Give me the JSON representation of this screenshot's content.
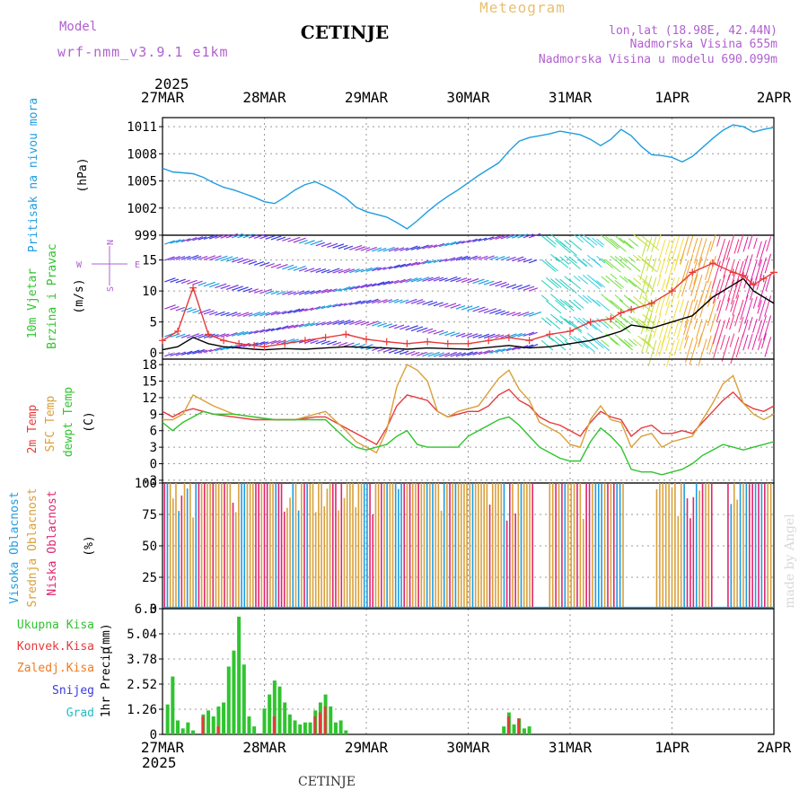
{
  "header": {
    "model_label": "Model",
    "model_name": "wrf-nmm_v3.9.1 e1km",
    "station": "CETINJE",
    "product": "Meteogram",
    "lonlat": "lon,lat (18.98E, 42.44N)",
    "elevation": "Nadmorska Visina 655m",
    "model_elevation": "Nadmorska Visina u modelu 690.099m",
    "year": "2025",
    "footer_station": "CETINJE",
    "watermark": "made by Angel"
  },
  "colors": {
    "pressure": "#1e9de0",
    "wind_speed": "#000000",
    "wind_gust": "#e8393a",
    "temp_2m": "#e8393a",
    "temp_sfc": "#d9a03a",
    "dewpoint": "#2fc42f",
    "cloud_high": "#1e9de0",
    "cloud_mid": "#d9a03a",
    "cloud_low": "#e0266f",
    "precip_total": "#2fc42f",
    "precip_conv": "#e8393a",
    "precip_strat": "#f07a20",
    "snow": "#3a3ae0",
    "hail": "#20c0c0",
    "label_purple": "#b060d0",
    "label_orange": "#e8c070"
  },
  "chart_data": {
    "type": "line",
    "x_ticks": [
      "27MAR",
      "28MAR",
      "29MAR",
      "30MAR",
      "31MAR",
      "1APR",
      "2APR"
    ],
    "x_range_days": [
      0,
      6
    ],
    "panels": [
      {
        "id": "pressure",
        "ylabel": "Pritisak na nivou mora",
        "unit": "(hPa)",
        "yticks": [
          999,
          1002,
          1005,
          1008,
          1011
        ],
        "ylim": [
          999,
          1012
        ],
        "series": [
          {
            "name": "pressure",
            "x": [
              0,
              0.1,
              0.2,
              0.3,
              0.4,
              0.5,
              0.6,
              0.7,
              0.8,
              0.9,
              1.0,
              1.1,
              1.2,
              1.3,
              1.4,
              1.5,
              1.6,
              1.7,
              1.8,
              1.9,
              2.0,
              2.1,
              2.2,
              2.3,
              2.4,
              2.5,
              2.6,
              2.7,
              2.8,
              2.9,
              3.0,
              3.1,
              3.2,
              3.3,
              3.4,
              3.5,
              3.6,
              3.7,
              3.8,
              3.9,
              4.0,
              4.1,
              4.2,
              4.3,
              4.4,
              4.5,
              4.6,
              4.7,
              4.8,
              4.9,
              5.0,
              5.1,
              5.2,
              5.3,
              5.4,
              5.5,
              5.6,
              5.7,
              5.8,
              5.9,
              6.0
            ],
            "values": [
              1006.4,
              1006.0,
              1005.9,
              1005.8,
              1005.4,
              1004.8,
              1004.3,
              1004.0,
              1003.6,
              1003.2,
              1002.7,
              1002.5,
              1003.2,
              1004.0,
              1004.6,
              1004.9,
              1004.4,
              1003.8,
              1003.1,
              1002.1,
              1001.6,
              1001.3,
              1001.0,
              1000.4,
              999.7,
              1000.6,
              1001.6,
              1002.5,
              1003.3,
              1004.0,
              1004.8,
              1005.6,
              1006.3,
              1007.0,
              1008.3,
              1009.4,
              1009.8,
              1010.0,
              1010.2,
              1010.5,
              1010.3,
              1010.1,
              1009.6,
              1008.9,
              1009.6,
              1010.7,
              1010.0,
              1008.8,
              1007.9,
              1007.8,
              1007.6,
              1007.1,
              1007.7,
              1008.7,
              1009.7,
              1010.6,
              1011.2,
              1011.0,
              1010.4,
              1010.7,
              1010.9
            ]
          }
        ]
      },
      {
        "id": "wind",
        "ylabel": "10m Vjetar Brzina i Pravac",
        "unit": "(m/s)",
        "yticks": [
          0,
          5,
          10,
          15
        ],
        "ylim": [
          -1,
          19
        ],
        "series": [
          {
            "name": "wind_speed",
            "x": [
              0,
              0.15,
              0.3,
              0.45,
              0.6,
              0.75,
              0.9,
              1.0,
              1.2,
              1.4,
              1.6,
              1.8,
              2.0,
              2.2,
              2.4,
              2.6,
              2.8,
              3.0,
              3.2,
              3.4,
              3.6,
              3.8,
              4.0,
              4.2,
              4.4,
              4.5,
              4.6,
              4.8,
              5.0,
              5.2,
              5.4,
              5.6,
              5.7,
              5.8,
              5.9,
              6.0
            ],
            "values": [
              0.5,
              1.0,
              2.5,
              1.5,
              1.0,
              0.8,
              0.6,
              0.5,
              0.7,
              0.6,
              0.8,
              1.0,
              0.9,
              0.8,
              0.6,
              0.8,
              0.7,
              0.6,
              0.9,
              1.2,
              0.8,
              1.0,
              1.5,
              2.0,
              3.0,
              3.5,
              4.5,
              4.0,
              5.0,
              6.0,
              9.0,
              11.0,
              12.0,
              10.0,
              9.0,
              8.0
            ]
          },
          {
            "name": "wind_gust",
            "x": [
              0,
              0.15,
              0.3,
              0.45,
              0.6,
              0.75,
              0.9,
              1.0,
              1.2,
              1.4,
              1.6,
              1.8,
              2.0,
              2.2,
              2.4,
              2.6,
              2.8,
              3.0,
              3.2,
              3.4,
              3.6,
              3.8,
              4.0,
              4.2,
              4.4,
              4.5,
              4.6,
              4.8,
              5.0,
              5.2,
              5.4,
              5.6,
              5.7,
              5.8,
              5.9,
              6.0
            ],
            "values": [
              2.0,
              3.5,
              10.5,
              3.0,
              2.0,
              1.5,
              1.2,
              1.0,
              1.5,
              2.0,
              2.5,
              3.0,
              2.2,
              1.8,
              1.5,
              1.8,
              1.5,
              1.5,
              2.0,
              2.5,
              2.0,
              3.0,
              3.5,
              5.0,
              5.5,
              6.5,
              7.0,
              8.0,
              10.0,
              13.0,
              14.5,
              13.0,
              12.5,
              11.0,
              12.0,
              13.0
            ]
          }
        ],
        "wind_direction_legend": [
          "N",
          "W",
          "E",
          "S"
        ]
      },
      {
        "id": "temp",
        "ylabel": "2m Temp / SFC Temp / dewpt Temp",
        "unit": "(C)",
        "yticks": [
          -3,
          0,
          3,
          6,
          9,
          12,
          15,
          18
        ],
        "ylim": [
          -3.5,
          19
        ],
        "series": [
          {
            "name": "2m Temp",
            "x": [
              0,
              0.1,
              0.2,
              0.3,
              0.4,
              0.5,
              0.7,
              0.9,
              1.1,
              1.3,
              1.5,
              1.6,
              1.8,
              1.9,
              2.0,
              2.1,
              2.2,
              2.3,
              2.4,
              2.5,
              2.6,
              2.7,
              2.8,
              2.9,
              3.0,
              3.1,
              3.2,
              3.3,
              3.4,
              3.5,
              3.6,
              3.7,
              3.8,
              3.9,
              4.0,
              4.1,
              4.2,
              4.3,
              4.4,
              4.5,
              4.6,
              4.7,
              4.8,
              4.9,
              5.0,
              5.1,
              5.2,
              5.3,
              5.4,
              5.5,
              5.6,
              5.7,
              5.8,
              5.9,
              6.0
            ],
            "values": [
              9.5,
              8.5,
              9.5,
              10.0,
              9.5,
              9.0,
              8.5,
              8.0,
              8.0,
              8.0,
              8.5,
              8.5,
              6.5,
              5.5,
              4.5,
              3.5,
              6.5,
              10.5,
              12.5,
              12.0,
              11.5,
              9.5,
              8.5,
              9.0,
              9.5,
              9.5,
              10.5,
              12.5,
              13.5,
              11.5,
              10.5,
              8.5,
              7.5,
              7.0,
              6.0,
              5.0,
              7.5,
              9.5,
              8.5,
              8.0,
              5.0,
              6.5,
              7.0,
              5.5,
              5.5,
              6.0,
              5.5,
              7.5,
              9.5,
              11.5,
              13.0,
              11.0,
              10.0,
              9.5,
              10.5
            ]
          },
          {
            "name": "SFC Temp",
            "x": [
              0,
              0.1,
              0.2,
              0.3,
              0.4,
              0.5,
              0.7,
              0.9,
              1.1,
              1.3,
              1.5,
              1.6,
              1.8,
              1.9,
              2.0,
              2.1,
              2.2,
              2.3,
              2.4,
              2.5,
              2.6,
              2.7,
              2.8,
              2.9,
              3.0,
              3.1,
              3.2,
              3.3,
              3.4,
              3.5,
              3.6,
              3.7,
              3.8,
              3.9,
              4.0,
              4.1,
              4.2,
              4.3,
              4.4,
              4.5,
              4.6,
              4.7,
              4.8,
              4.9,
              5.0,
              5.1,
              5.2,
              5.3,
              5.4,
              5.5,
              5.6,
              5.7,
              5.8,
              5.9,
              6.0
            ],
            "values": [
              8.0,
              8.0,
              9.0,
              12.5,
              11.5,
              10.5,
              9.0,
              8.5,
              8.0,
              8.0,
              9.0,
              9.5,
              6.0,
              4.0,
              3.0,
              2.0,
              6.0,
              14.0,
              18.0,
              17.0,
              15.0,
              9.5,
              8.5,
              9.5,
              10.0,
              10.5,
              13.0,
              15.5,
              17.0,
              13.5,
              11.5,
              7.5,
              6.5,
              5.5,
              3.5,
              3.0,
              8.0,
              10.5,
              8.0,
              7.5,
              3.0,
              5.0,
              5.5,
              3.0,
              4.0,
              4.5,
              5.0,
              8.0,
              11.0,
              14.5,
              16.0,
              11.0,
              9.0,
              8.0,
              9.0
            ]
          },
          {
            "name": "dewpt Temp",
            "x": [
              0,
              0.1,
              0.2,
              0.3,
              0.4,
              0.5,
              0.7,
              0.9,
              1.1,
              1.3,
              1.5,
              1.6,
              1.8,
              1.9,
              2.0,
              2.1,
              2.2,
              2.3,
              2.4,
              2.5,
              2.6,
              2.7,
              2.8,
              2.9,
              3.0,
              3.1,
              3.2,
              3.3,
              3.4,
              3.5,
              3.6,
              3.7,
              3.8,
              3.9,
              4.0,
              4.1,
              4.2,
              4.3,
              4.4,
              4.5,
              4.6,
              4.7,
              4.8,
              4.9,
              5.0,
              5.1,
              5.2,
              5.3,
              5.4,
              5.5,
              5.6,
              5.7,
              5.8,
              5.9,
              6.0
            ],
            "values": [
              7.5,
              6.0,
              7.5,
              8.5,
              9.5,
              9.0,
              9.0,
              8.5,
              8.0,
              8.0,
              8.0,
              8.0,
              4.5,
              3.0,
              2.5,
              3.0,
              3.5,
              5.0,
              6.0,
              3.5,
              3.0,
              3.0,
              3.0,
              3.0,
              5.0,
              6.0,
              7.0,
              8.0,
              8.5,
              7.0,
              5.0,
              3.0,
              2.0,
              1.0,
              0.5,
              0.5,
              4.0,
              6.5,
              5.0,
              3.0,
              -1.0,
              -1.5,
              -1.5,
              -2.0,
              -1.5,
              -1.0,
              0.0,
              1.5,
              2.5,
              3.5,
              3.0,
              2.5,
              3.0,
              3.5,
              4.0
            ]
          }
        ]
      },
      {
        "id": "cloud",
        "ylabel": "Visoka Oblacnost / Srednja Oblacnost / Niska Oblacnost",
        "unit": "(%)",
        "yticks": [
          0,
          25,
          50,
          75,
          100
        ],
        "ylim": [
          0,
          100
        ]
      },
      {
        "id": "precip",
        "ylabel": "1hr Precip",
        "unit": "(mm)",
        "yticks": [
          0,
          1.26,
          2.52,
          3.78,
          5.04,
          6.3
        ],
        "ylim": [
          0,
          6.3
        ],
        "series": [
          {
            "name": "Ukupna Kisa",
            "x": [
              0.05,
              0.1,
              0.15,
              0.2,
              0.25,
              0.3,
              0.4,
              0.45,
              0.5,
              0.55,
              0.6,
              0.65,
              0.7,
              0.75,
              0.8,
              0.85,
              0.9,
              1.0,
              1.05,
              1.1,
              1.15,
              1.2,
              1.25,
              1.3,
              1.35,
              1.4,
              1.45,
              1.5,
              1.55,
              1.6,
              1.65,
              1.7,
              1.75,
              1.8,
              3.35,
              3.4,
              3.45,
              3.5,
              3.55,
              3.6
            ],
            "values": [
              1.5,
              2.9,
              0.7,
              0.3,
              0.6,
              0.2,
              1.0,
              1.2,
              0.9,
              1.4,
              1.6,
              3.4,
              4.2,
              5.9,
              3.5,
              0.9,
              0.4,
              1.3,
              2.0,
              2.7,
              2.4,
              1.6,
              1.0,
              0.7,
              0.5,
              0.6,
              0.6,
              1.2,
              1.6,
              2.0,
              1.4,
              0.6,
              0.7,
              0.2,
              0.4,
              1.1,
              0.5,
              0.8,
              0.3,
              0.4
            ]
          },
          {
            "name": "Konvek.Kisa",
            "x": [
              0.4,
              0.55,
              1.1,
              1.5,
              1.55,
              1.6,
              3.4,
              3.5
            ],
            "values": [
              0.9,
              0.4,
              0.9,
              0.9,
              1.1,
              1.4,
              0.9,
              0.8
            ]
          }
        ],
        "legend": [
          "Ukupna Kisa",
          "Konvek.Kisa",
          "Zaledj.Kisa",
          "Snijeg",
          "Grad"
        ]
      }
    ]
  }
}
